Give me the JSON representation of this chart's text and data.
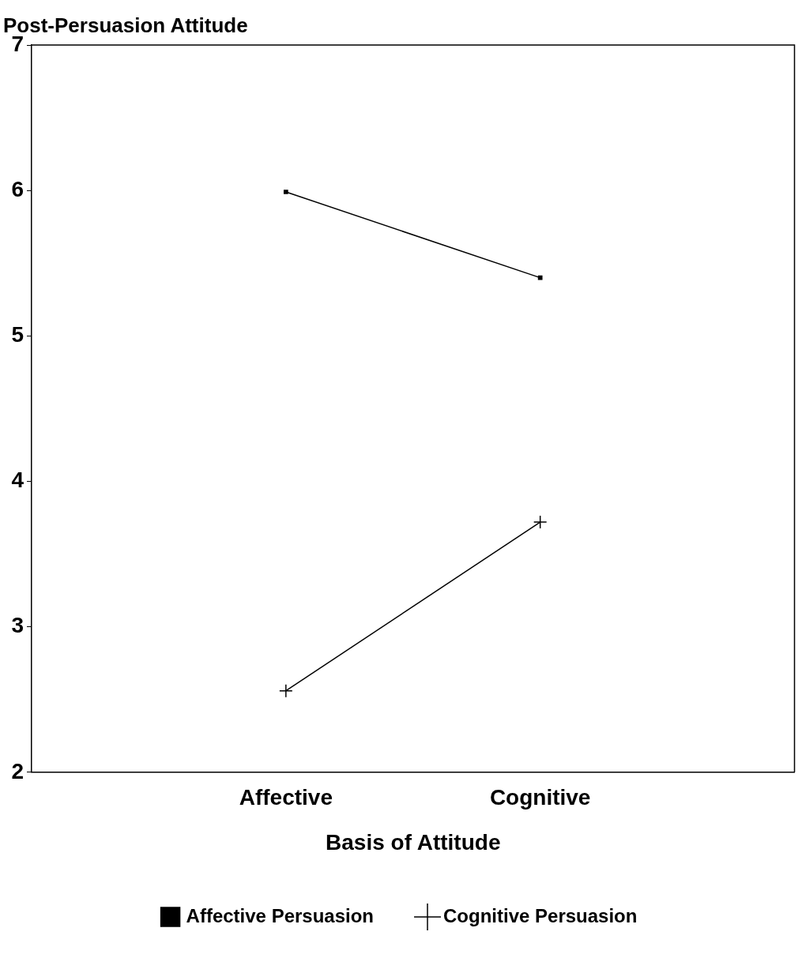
{
  "chart_data": {
    "type": "line",
    "ylabel": "Post-Persuasion Attitude",
    "xlabel": "Basis of Attitude",
    "categories": [
      null,
      "Affective",
      "Cognitive",
      null
    ],
    "ylim": [
      2,
      7
    ],
    "yticks": [
      2,
      3,
      4,
      5,
      6,
      7
    ],
    "grid": false,
    "legend": "bottom",
    "series": [
      {
        "name": "Affective Persuasion",
        "color": "#000000",
        "marker": "square",
        "values": [
          null,
          5.99,
          5.4,
          null
        ]
      },
      {
        "name": "Cognitive Persuasion",
        "color": "#000000",
        "marker": "cross",
        "values": [
          null,
          2.56,
          3.72,
          null
        ]
      }
    ]
  }
}
